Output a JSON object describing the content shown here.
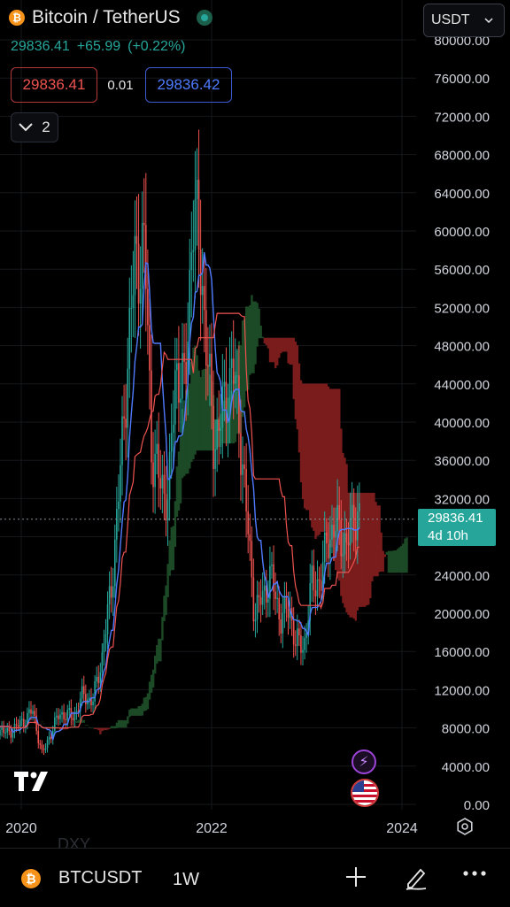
{
  "header": {
    "symbol_title": "Bitcoin / TetherUS",
    "last_price": "29836.41",
    "change": "+65.99",
    "change_pct": "(+0.22%)",
    "coin_glyph": "₿",
    "currency": "USDT"
  },
  "order": {
    "bid": "29836.41",
    "spread": "0.01",
    "ask": "29836.42"
  },
  "indicators": {
    "count": "2"
  },
  "price_label": {
    "price": "29836.41",
    "countdown": "4d 10h"
  },
  "colors": {
    "up": "#26a69a",
    "down": "#ef5350",
    "tenkan": "#4f7bff",
    "kijun": "#ef5350",
    "cloud_bull": "#1d4a26",
    "cloud_bear": "#7a1c1c"
  },
  "bottom_bar": {
    "symbol": "BTCUSDT",
    "timeframe": "1W",
    "coin_glyph": "₿",
    "faded_text": "DXY"
  },
  "chart_data": {
    "type": "candlestick",
    "interval": "1W",
    "price_axis": {
      "ticks": [
        "80000.00",
        "76000.00",
        "72000.00",
        "68000.00",
        "64000.00",
        "60000.00",
        "56000.00",
        "52000.00",
        "48000.00",
        "44000.00",
        "40000.00",
        "36000.00",
        "32000.00",
        "28000.00",
        "24000.00",
        "20000.00",
        "16000.00",
        "12000.00",
        "8000.00",
        "4000.00",
        "0.00"
      ],
      "range": [
        0,
        80000
      ]
    },
    "time_axis": {
      "ticks": [
        "2020",
        "2022",
        "2024"
      ]
    },
    "current_price": 29836.41,
    "close_series": [
      [
        2019.7,
        8300
      ],
      [
        2019.85,
        7400
      ],
      [
        2020.0,
        8500
      ],
      [
        2020.12,
        9800
      ],
      [
        2020.22,
        5200
      ],
      [
        2020.3,
        7200
      ],
      [
        2020.4,
        9500
      ],
      [
        2020.55,
        9200
      ],
      [
        2020.65,
        11500
      ],
      [
        2020.75,
        10700
      ],
      [
        2020.85,
        15500
      ],
      [
        2020.95,
        23000
      ],
      [
        2021.05,
        36000
      ],
      [
        2021.12,
        47000
      ],
      [
        2021.2,
        57000
      ],
      [
        2021.3,
        58000
      ],
      [
        2021.37,
        37000
      ],
      [
        2021.45,
        34000
      ],
      [
        2021.55,
        32000
      ],
      [
        2021.62,
        46000
      ],
      [
        2021.72,
        43000
      ],
      [
        2021.8,
        62000
      ],
      [
        2021.88,
        58000
      ],
      [
        2021.95,
        47000
      ],
      [
        2022.02,
        38000
      ],
      [
        2022.12,
        41000
      ],
      [
        2022.22,
        46000
      ],
      [
        2022.3,
        39000
      ],
      [
        2022.37,
        30000
      ],
      [
        2022.45,
        20000
      ],
      [
        2022.55,
        22000
      ],
      [
        2022.62,
        24000
      ],
      [
        2022.72,
        19500
      ],
      [
        2022.82,
        20500
      ],
      [
        2022.88,
        17000
      ],
      [
        2022.97,
        16500
      ],
      [
        2023.05,
        23000
      ],
      [
        2023.15,
        23500
      ],
      [
        2023.22,
        28000
      ],
      [
        2023.32,
        29000
      ],
      [
        2023.42,
        27000
      ],
      [
        2023.5,
        30500
      ],
      [
        2023.57,
        29836
      ]
    ]
  }
}
